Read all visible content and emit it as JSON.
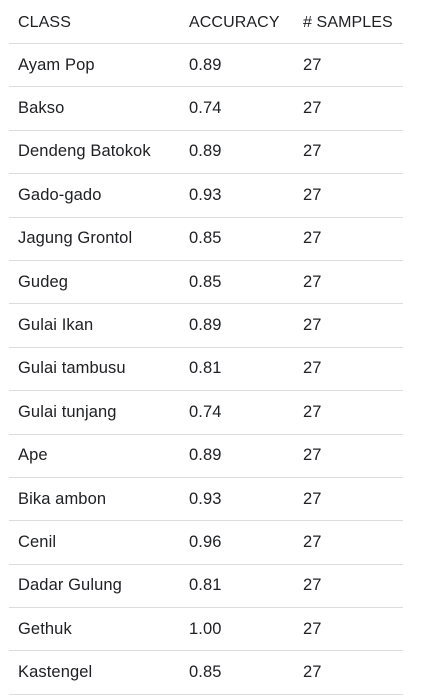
{
  "table": {
    "headers": [
      "CLASS",
      "ACCURACY",
      "# SAMPLES"
    ],
    "rows": [
      [
        "Ayam Pop",
        "0.89",
        "27"
      ],
      [
        "Bakso",
        "0.74",
        "27"
      ],
      [
        "Dendeng Batokok",
        "0.89",
        "27"
      ],
      [
        "Gado-gado",
        "0.93",
        "27"
      ],
      [
        "Jagung Grontol",
        "0.85",
        "27"
      ],
      [
        "Gudeg",
        "0.85",
        "27"
      ],
      [
        "Gulai Ikan",
        "0.89",
        "27"
      ],
      [
        "Gulai tambusu",
        "0.81",
        "27"
      ],
      [
        "Gulai tunjang",
        "0.74",
        "27"
      ],
      [
        "Ape",
        "0.89",
        "27"
      ],
      [
        "Bika ambon",
        "0.93",
        "27"
      ],
      [
        "Cenil",
        "0.96",
        "27"
      ],
      [
        "Dadar Gulung",
        "0.81",
        "27"
      ],
      [
        "Gethuk",
        "1.00",
        "27"
      ],
      [
        "Kastengel",
        "0.85",
        "27"
      ]
    ]
  },
  "colors": {
    "text": "#202124",
    "divider": "#dadce0",
    "background": "#ffffff"
  }
}
